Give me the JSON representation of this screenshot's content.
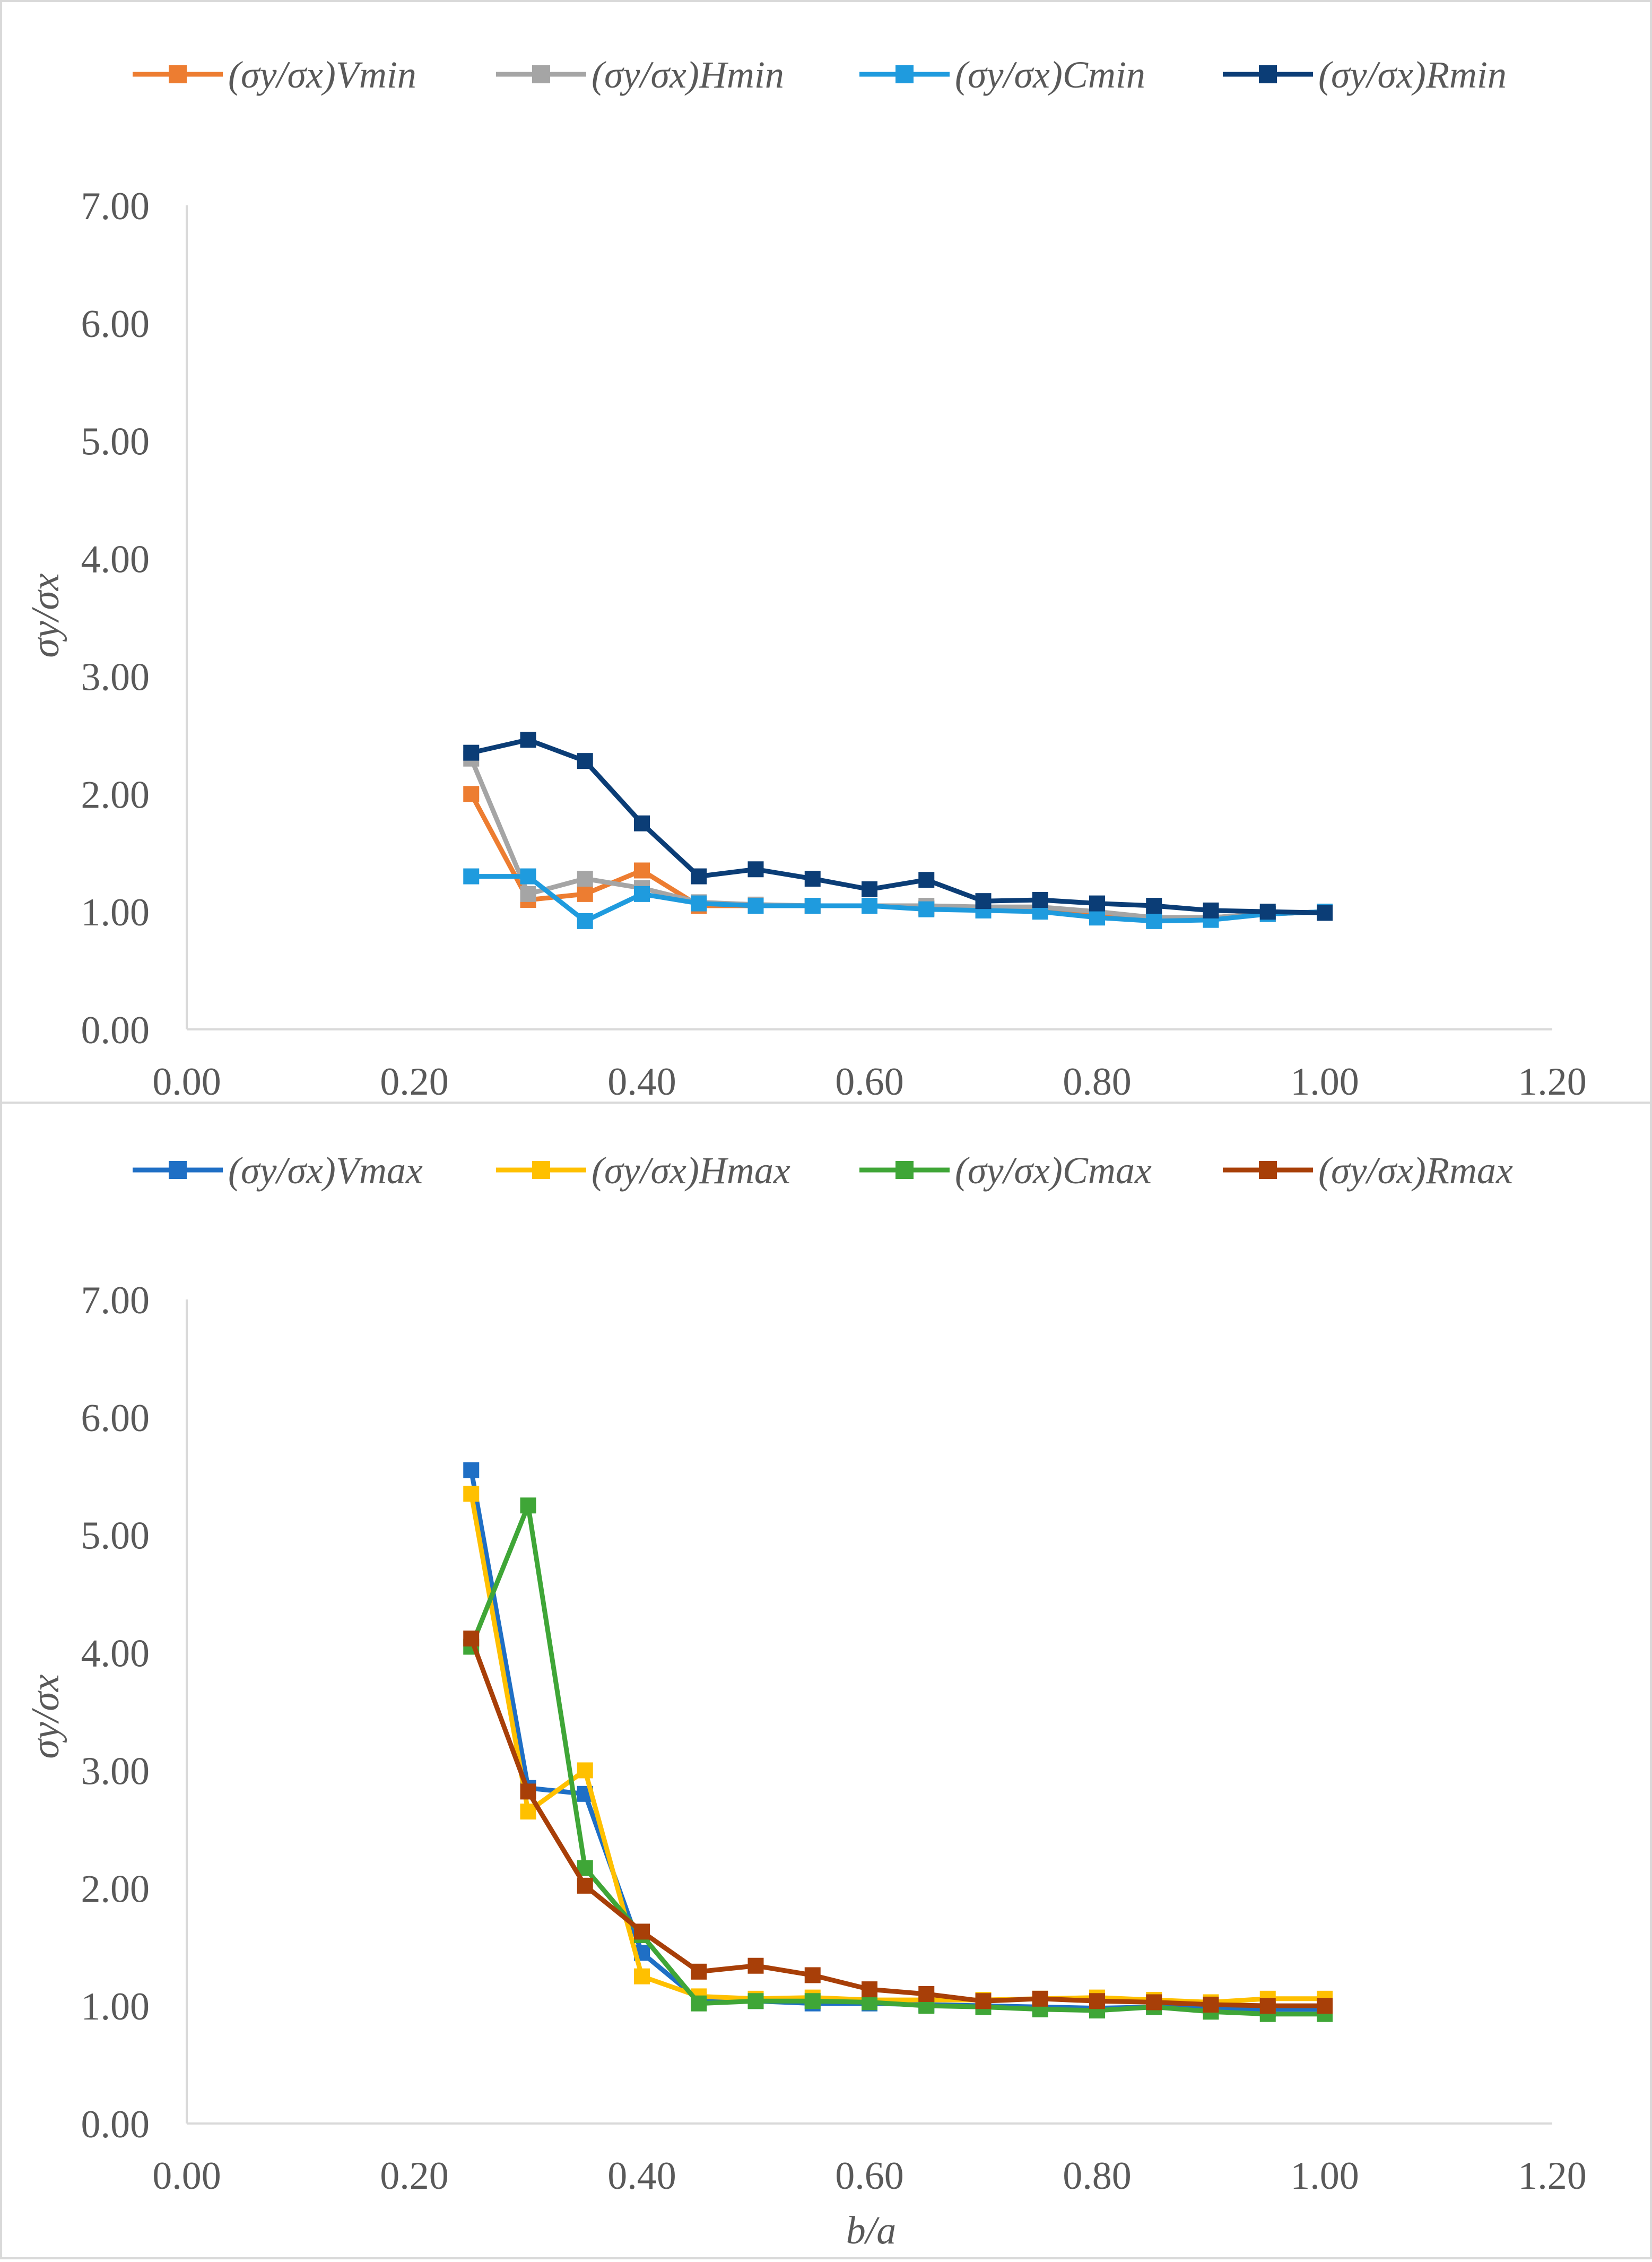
{
  "chart_data": [
    {
      "type": "line",
      "xlabel": "",
      "ylabel": "σy/σx",
      "xlim": [
        0,
        1.2
      ],
      "ylim": [
        0,
        7
      ],
      "x_ticks": [
        "0.00",
        "0.20",
        "0.40",
        "0.60",
        "0.80",
        "1.00",
        "1.20"
      ],
      "y_ticks": [
        "0.00",
        "1.00",
        "2.00",
        "3.00",
        "4.00",
        "5.00",
        "6.00",
        "7.00"
      ],
      "grid": false,
      "legend_position": "top",
      "x": [
        0.25,
        0.3,
        0.35,
        0.4,
        0.45,
        0.5,
        0.55,
        0.6,
        0.65,
        0.7,
        0.75,
        0.8,
        0.85,
        0.9,
        0.95,
        1.0
      ],
      "series": [
        {
          "name": "(σy/σx)Vmin",
          "color": "#ED7D31",
          "values": [
            2.0,
            1.1,
            1.15,
            1.35,
            1.05,
            1.05,
            1.05,
            1.05,
            1.03,
            1.02,
            1.02,
            0.98,
            0.95,
            0.95,
            0.98,
            1.0
          ]
        },
        {
          "name": "(σy/σx)Hmin",
          "color": "#A5A5A5",
          "values": [
            2.3,
            1.15,
            1.28,
            1.2,
            1.08,
            1.06,
            1.05,
            1.05,
            1.05,
            1.04,
            1.04,
            1.0,
            0.95,
            0.95,
            0.98,
            1.0
          ]
        },
        {
          "name": "(σy/σx)Cmin",
          "color": "#1F9BDE",
          "values": [
            1.3,
            1.3,
            0.92,
            1.15,
            1.07,
            1.05,
            1.05,
            1.05,
            1.02,
            1.01,
            1.0,
            0.95,
            0.92,
            0.93,
            0.98,
            1.0
          ]
        },
        {
          "name": "(σy/σx)Rmin",
          "color": "#0B3D76",
          "values": [
            2.35,
            2.46,
            2.28,
            1.75,
            1.3,
            1.36,
            1.28,
            1.19,
            1.27,
            1.09,
            1.1,
            1.07,
            1.05,
            1.01,
            1.0,
            0.99
          ]
        }
      ]
    },
    {
      "type": "line",
      "xlabel": "b/a",
      "ylabel": "σy/σx",
      "xlim": [
        0,
        1.2
      ],
      "ylim": [
        0,
        7
      ],
      "x_ticks": [
        "0.00",
        "0.20",
        "0.40",
        "0.60",
        "0.80",
        "1.00",
        "1.20"
      ],
      "y_ticks": [
        "0.00",
        "1.00",
        "2.00",
        "3.00",
        "4.00",
        "5.00",
        "6.00",
        "7.00"
      ],
      "grid": false,
      "legend_position": "top",
      "x": [
        0.25,
        0.3,
        0.35,
        0.4,
        0.45,
        0.5,
        0.55,
        0.6,
        0.65,
        0.7,
        0.75,
        0.8,
        0.85,
        0.9,
        0.95,
        1.0
      ],
      "series": [
        {
          "name": "(σy/σx)Vmax",
          "color": "#1F6FC5",
          "values": [
            5.55,
            2.85,
            2.8,
            1.45,
            1.05,
            1.04,
            1.02,
            1.02,
            1.01,
            1.0,
            0.99,
            0.98,
            0.99,
            0.98,
            0.97,
            0.97
          ]
        },
        {
          "name": "(σy/σx)Hmax",
          "color": "#FFC000",
          "values": [
            5.35,
            2.65,
            3.0,
            1.25,
            1.08,
            1.06,
            1.07,
            1.05,
            1.05,
            1.05,
            1.06,
            1.07,
            1.05,
            1.03,
            1.06,
            1.06
          ]
        },
        {
          "name": "(σy/σx)Cmax",
          "color": "#3FA637",
          "values": [
            4.05,
            5.25,
            2.17,
            1.6,
            1.02,
            1.04,
            1.04,
            1.03,
            1.0,
            0.99,
            0.97,
            0.96,
            0.99,
            0.95,
            0.93,
            0.93
          ]
        },
        {
          "name": "(σy/σx)Rmax",
          "color": "#A83F08",
          "values": [
            4.12,
            2.82,
            2.02,
            1.63,
            1.29,
            1.34,
            1.26,
            1.14,
            1.1,
            1.04,
            1.06,
            1.04,
            1.03,
            1.01,
            1.0,
            1.0
          ]
        }
      ]
    }
  ]
}
